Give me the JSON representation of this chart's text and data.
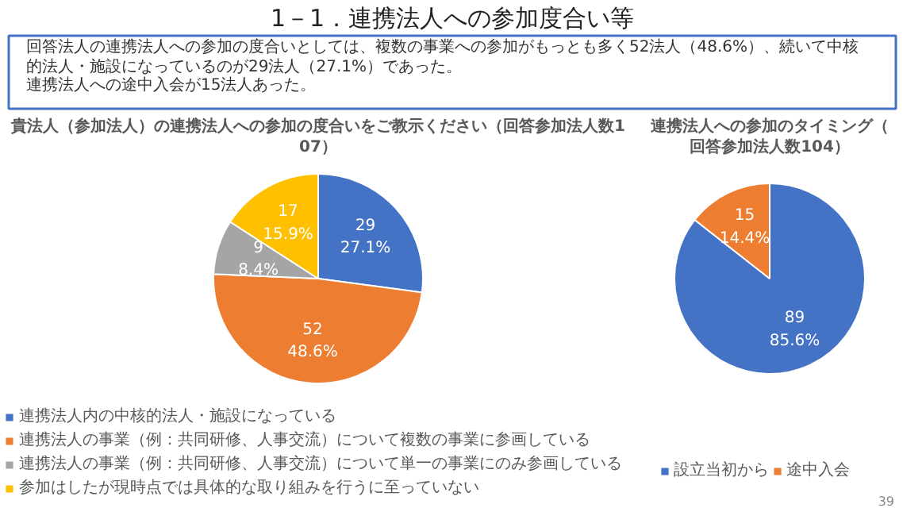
{
  "chart_data": [
    {
      "type": "other",
      "title": "1－1．連携法人への参加度合い等",
      "annotations": [
        "回答法人の連携法人への参加の度合いとしては、複数の事業への参加がもっとも多く52法人（48.6%）、続いて中核的法人・施設になっているのが29法人（27.1%）であった。",
        "連携法人への途中入会が15法人あった。"
      ]
    },
    {
      "type": "pie",
      "title": "貴法人（参加法人）の連携法人への参加の度合いをご教示ください（回答参加法人数107）",
      "categories": [
        "連携法人内の中核的法人・施設になっている",
        "連携法人の事業（例：共同研修、人事交流）について複数の事業に参画している",
        "連携法人の事業（例：共同研修、人事交流）について単一の事業にのみ参画している",
        "参加はしたが現時点では具体的な取り組みを行うに至っていない"
      ],
      "values": [
        29,
        52,
        9,
        17
      ],
      "colors": [
        "#4472c4",
        "#ed7d31",
        "#a5a5a5",
        "#ffc000"
      ],
      "value_labels": [
        "29\n27.1%",
        "52\n48.6%",
        "9\n8.4%",
        "17\n15.9%"
      ],
      "legend": "bottom"
    },
    {
      "type": "pie",
      "title": "連携法人への参加のタイミング（回答参加法人数104）",
      "categories": [
        "設立当初から",
        "途中入会"
      ],
      "values": [
        89,
        15
      ],
      "colors": [
        "#4472c4",
        "#ed7d31"
      ],
      "value_labels": [
        "89\n85.6%",
        "15\n14.4%"
      ],
      "legend": "bottom",
      "annotations": [
        "39"
      ]
    }
  ]
}
